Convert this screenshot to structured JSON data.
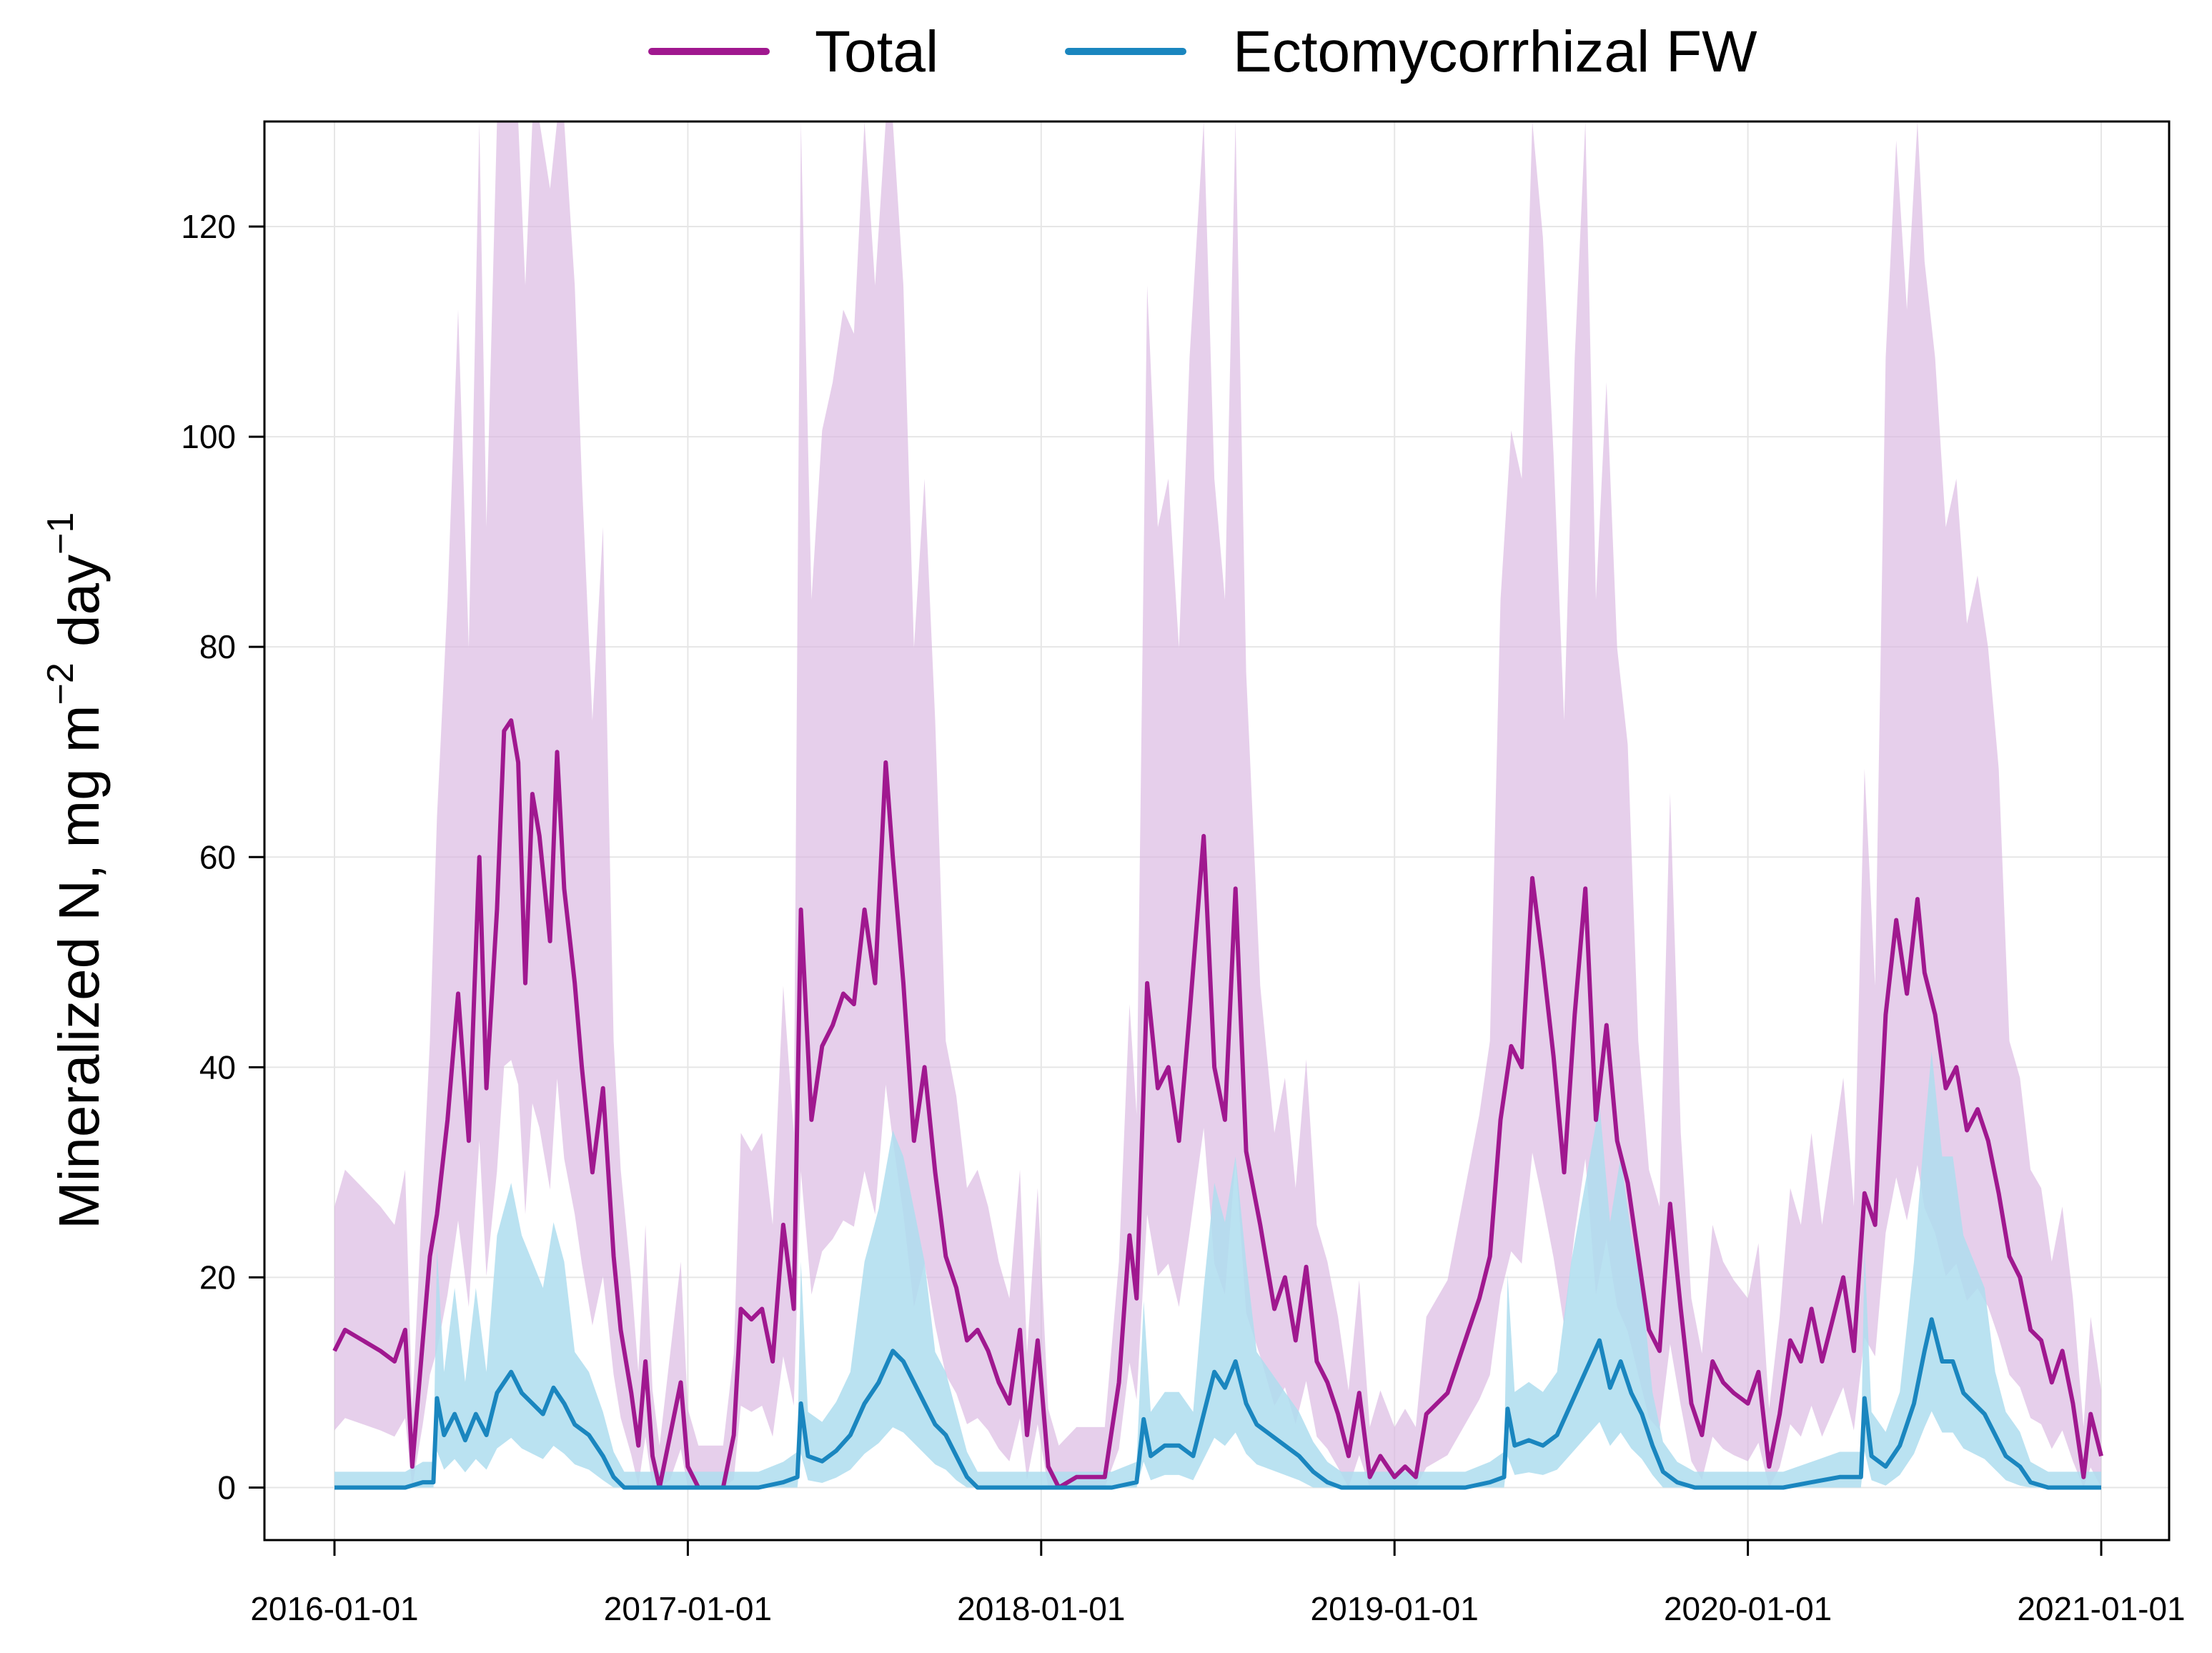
{
  "chart_data": {
    "type": "line",
    "title": "",
    "xlabel": "",
    "ylabel": {
      "main": "Mineralized N, mg m",
      "exp1": "−2",
      "mid": " day",
      "exp2": "−1"
    },
    "xlim": [
      "2016-01-01",
      "2021-01-01"
    ],
    "ylim": [
      -5,
      130
    ],
    "x_ticks": [
      "2016-01-01",
      "2017-01-01",
      "2018-01-01",
      "2019-01-01",
      "2020-01-01",
      "2021-01-01"
    ],
    "y_ticks": [
      0,
      20,
      40,
      60,
      80,
      100,
      120
    ],
    "grid": true,
    "legend": {
      "placement": "top-center",
      "entries": [
        "Total",
        "Ectomycorrhizal FW"
      ]
    },
    "series": [
      {
        "name": "Total",
        "color": "#A0188F",
        "band_color": "#D9B6E0",
        "points": [
          [
            2016.0,
            13
          ],
          [
            2016.03,
            15
          ],
          [
            2016.08,
            14
          ],
          [
            2016.13,
            13
          ],
          [
            2016.17,
            12
          ],
          [
            2016.2,
            15
          ],
          [
            2016.22,
            2
          ],
          [
            2016.25,
            14
          ],
          [
            2016.27,
            22
          ],
          [
            2016.29,
            26
          ],
          [
            2016.32,
            35
          ],
          [
            2016.35,
            47
          ],
          [
            2016.38,
            33
          ],
          [
            2016.41,
            60
          ],
          [
            2016.43,
            38
          ],
          [
            2016.46,
            55
          ],
          [
            2016.48,
            72
          ],
          [
            2016.5,
            73
          ],
          [
            2016.52,
            69
          ],
          [
            2016.54,
            48
          ],
          [
            2016.56,
            66
          ],
          [
            2016.58,
            62
          ],
          [
            2016.61,
            52
          ],
          [
            2016.63,
            70
          ],
          [
            2016.65,
            57
          ],
          [
            2016.68,
            48
          ],
          [
            2016.7,
            40
          ],
          [
            2016.73,
            30
          ],
          [
            2016.76,
            38
          ],
          [
            2016.79,
            22
          ],
          [
            2016.81,
            15
          ],
          [
            2016.84,
            9
          ],
          [
            2016.86,
            4
          ],
          [
            2016.88,
            12
          ],
          [
            2016.9,
            3
          ],
          [
            2016.92,
            0
          ],
          [
            2016.95,
            5
          ],
          [
            2016.98,
            10
          ],
          [
            2017.0,
            2
          ],
          [
            2017.03,
            0
          ],
          [
            2017.1,
            0
          ],
          [
            2017.13,
            5
          ],
          [
            2017.15,
            17
          ],
          [
            2017.18,
            16
          ],
          [
            2017.21,
            17
          ],
          [
            2017.24,
            12
          ],
          [
            2017.27,
            25
          ],
          [
            2017.3,
            17
          ],
          [
            2017.32,
            55
          ],
          [
            2017.35,
            35
          ],
          [
            2017.38,
            42
          ],
          [
            2017.41,
            44
          ],
          [
            2017.44,
            47
          ],
          [
            2017.47,
            46
          ],
          [
            2017.5,
            55
          ],
          [
            2017.53,
            48
          ],
          [
            2017.56,
            69
          ],
          [
            2017.58,
            60
          ],
          [
            2017.61,
            48
          ],
          [
            2017.64,
            33
          ],
          [
            2017.67,
            40
          ],
          [
            2017.7,
            30
          ],
          [
            2017.73,
            22
          ],
          [
            2017.76,
            19
          ],
          [
            2017.79,
            14
          ],
          [
            2017.82,
            15
          ],
          [
            2017.85,
            13
          ],
          [
            2017.88,
            10
          ],
          [
            2017.91,
            8
          ],
          [
            2017.94,
            15
          ],
          [
            2017.96,
            5
          ],
          [
            2017.99,
            14
          ],
          [
            2018.02,
            2
          ],
          [
            2018.05,
            0
          ],
          [
            2018.1,
            1
          ],
          [
            2018.18,
            1
          ],
          [
            2018.22,
            10
          ],
          [
            2018.25,
            24
          ],
          [
            2018.27,
            18
          ],
          [
            2018.3,
            48
          ],
          [
            2018.33,
            38
          ],
          [
            2018.36,
            40
          ],
          [
            2018.39,
            33
          ],
          [
            2018.42,
            45
          ],
          [
            2018.46,
            62
          ],
          [
            2018.49,
            40
          ],
          [
            2018.52,
            35
          ],
          [
            2018.55,
            57
          ],
          [
            2018.58,
            32
          ],
          [
            2018.62,
            25
          ],
          [
            2018.66,
            17
          ],
          [
            2018.69,
            20
          ],
          [
            2018.72,
            14
          ],
          [
            2018.75,
            21
          ],
          [
            2018.78,
            12
          ],
          [
            2018.81,
            10
          ],
          [
            2018.84,
            7
          ],
          [
            2018.87,
            3
          ],
          [
            2018.9,
            9
          ],
          [
            2018.93,
            1
          ],
          [
            2018.96,
            3
          ],
          [
            2019.0,
            1
          ],
          [
            2019.03,
            2
          ],
          [
            2019.06,
            1
          ],
          [
            2019.09,
            7
          ],
          [
            2019.12,
            8
          ],
          [
            2019.15,
            9
          ],
          [
            2019.18,
            12
          ],
          [
            2019.21,
            15
          ],
          [
            2019.24,
            18
          ],
          [
            2019.27,
            22
          ],
          [
            2019.3,
            35
          ],
          [
            2019.33,
            42
          ],
          [
            2019.36,
            40
          ],
          [
            2019.39,
            58
          ],
          [
            2019.42,
            50
          ],
          [
            2019.45,
            41
          ],
          [
            2019.48,
            30
          ],
          [
            2019.51,
            45
          ],
          [
            2019.54,
            57
          ],
          [
            2019.57,
            35
          ],
          [
            2019.6,
            44
          ],
          [
            2019.63,
            33
          ],
          [
            2019.66,
            29
          ],
          [
            2019.69,
            22
          ],
          [
            2019.72,
            15
          ],
          [
            2019.75,
            13
          ],
          [
            2019.78,
            27
          ],
          [
            2019.81,
            17
          ],
          [
            2019.84,
            8
          ],
          [
            2019.87,
            5
          ],
          [
            2019.9,
            12
          ],
          [
            2019.93,
            10
          ],
          [
            2019.96,
            9
          ],
          [
            2020.0,
            8
          ],
          [
            2020.03,
            11
          ],
          [
            2020.06,
            2
          ],
          [
            2020.09,
            7
          ],
          [
            2020.12,
            14
          ],
          [
            2020.15,
            12
          ],
          [
            2020.18,
            17
          ],
          [
            2020.21,
            12
          ],
          [
            2020.24,
            16
          ],
          [
            2020.27,
            20
          ],
          [
            2020.3,
            13
          ],
          [
            2020.33,
            28
          ],
          [
            2020.36,
            25
          ],
          [
            2020.39,
            45
          ],
          [
            2020.42,
            54
          ],
          [
            2020.45,
            47
          ],
          [
            2020.48,
            56
          ],
          [
            2020.5,
            49
          ],
          [
            2020.53,
            45
          ],
          [
            2020.56,
            38
          ],
          [
            2020.59,
            40
          ],
          [
            2020.62,
            34
          ],
          [
            2020.65,
            36
          ],
          [
            2020.68,
            33
          ],
          [
            2020.71,
            28
          ],
          [
            2020.74,
            22
          ],
          [
            2020.77,
            20
          ],
          [
            2020.8,
            15
          ],
          [
            2020.83,
            14
          ],
          [
            2020.86,
            10
          ],
          [
            2020.89,
            13
          ],
          [
            2020.92,
            8
          ],
          [
            2020.95,
            1
          ],
          [
            2020.97,
            7
          ],
          [
            2021.0,
            3
          ]
        ]
      },
      {
        "name": "Ectomycorrhizal FW",
        "color": "#1A86BF",
        "band_color": "#AEDDEF",
        "points": [
          [
            2016.0,
            0
          ],
          [
            2016.1,
            0
          ],
          [
            2016.2,
            0
          ],
          [
            2016.25,
            0.5
          ],
          [
            2016.28,
            0.5
          ],
          [
            2016.29,
            8.5
          ],
          [
            2016.31,
            5
          ],
          [
            2016.34,
            7
          ],
          [
            2016.37,
            4.5
          ],
          [
            2016.4,
            7
          ],
          [
            2016.43,
            5
          ],
          [
            2016.46,
            9
          ],
          [
            2016.5,
            11
          ],
          [
            2016.53,
            9
          ],
          [
            2016.56,
            8
          ],
          [
            2016.59,
            7
          ],
          [
            2016.62,
            9.5
          ],
          [
            2016.65,
            8
          ],
          [
            2016.68,
            6
          ],
          [
            2016.72,
            5
          ],
          [
            2016.76,
            3
          ],
          [
            2016.79,
            1
          ],
          [
            2016.82,
            0
          ],
          [
            2016.9,
            0
          ],
          [
            2017.0,
            0
          ],
          [
            2017.1,
            0
          ],
          [
            2017.2,
            0
          ],
          [
            2017.27,
            0.5
          ],
          [
            2017.31,
            1
          ],
          [
            2017.32,
            8
          ],
          [
            2017.34,
            3
          ],
          [
            2017.38,
            2.5
          ],
          [
            2017.42,
            3.5
          ],
          [
            2017.46,
            5
          ],
          [
            2017.5,
            8
          ],
          [
            2017.54,
            10
          ],
          [
            2017.58,
            13
          ],
          [
            2017.61,
            12
          ],
          [
            2017.64,
            10
          ],
          [
            2017.67,
            8
          ],
          [
            2017.7,
            6
          ],
          [
            2017.73,
            5
          ],
          [
            2017.76,
            3
          ],
          [
            2017.79,
            1
          ],
          [
            2017.82,
            0
          ],
          [
            2017.9,
            0
          ],
          [
            2018.0,
            0
          ],
          [
            2018.1,
            0
          ],
          [
            2018.2,
            0
          ],
          [
            2018.27,
            0.5
          ],
          [
            2018.29,
            6.5
          ],
          [
            2018.31,
            3
          ],
          [
            2018.35,
            4
          ],
          [
            2018.39,
            4
          ],
          [
            2018.43,
            3
          ],
          [
            2018.46,
            7
          ],
          [
            2018.49,
            11
          ],
          [
            2018.52,
            9.5
          ],
          [
            2018.55,
            12
          ],
          [
            2018.58,
            8
          ],
          [
            2018.61,
            6
          ],
          [
            2018.65,
            5
          ],
          [
            2018.69,
            4
          ],
          [
            2018.73,
            3
          ],
          [
            2018.77,
            1.5
          ],
          [
            2018.81,
            0.5
          ],
          [
            2018.85,
            0
          ],
          [
            2018.95,
            0
          ],
          [
            2019.0,
            0
          ],
          [
            2019.1,
            0
          ],
          [
            2019.2,
            0
          ],
          [
            2019.27,
            0.5
          ],
          [
            2019.31,
            1
          ],
          [
            2019.32,
            7.5
          ],
          [
            2019.34,
            4
          ],
          [
            2019.38,
            4.5
          ],
          [
            2019.42,
            4
          ],
          [
            2019.46,
            5
          ],
          [
            2019.5,
            8
          ],
          [
            2019.54,
            11
          ],
          [
            2019.58,
            14
          ],
          [
            2019.61,
            9.5
          ],
          [
            2019.64,
            12
          ],
          [
            2019.67,
            9
          ],
          [
            2019.7,
            7
          ],
          [
            2019.73,
            4
          ],
          [
            2019.76,
            1.5
          ],
          [
            2019.8,
            0.5
          ],
          [
            2019.85,
            0
          ],
          [
            2019.95,
            0
          ],
          [
            2020.0,
            0
          ],
          [
            2020.1,
            0
          ],
          [
            2020.18,
            0.5
          ],
          [
            2020.26,
            1
          ],
          [
            2020.32,
            1
          ],
          [
            2020.33,
            8.5
          ],
          [
            2020.35,
            3
          ],
          [
            2020.39,
            2
          ],
          [
            2020.43,
            4
          ],
          [
            2020.47,
            8
          ],
          [
            2020.5,
            13
          ],
          [
            2020.52,
            16
          ],
          [
            2020.55,
            12
          ],
          [
            2020.58,
            12
          ],
          [
            2020.61,
            9
          ],
          [
            2020.64,
            8
          ],
          [
            2020.67,
            7
          ],
          [
            2020.7,
            5
          ],
          [
            2020.73,
            3
          ],
          [
            2020.77,
            2
          ],
          [
            2020.8,
            0.5
          ],
          [
            2020.85,
            0
          ],
          [
            2020.95,
            0
          ],
          [
            2021.0,
            0
          ]
        ]
      }
    ]
  }
}
